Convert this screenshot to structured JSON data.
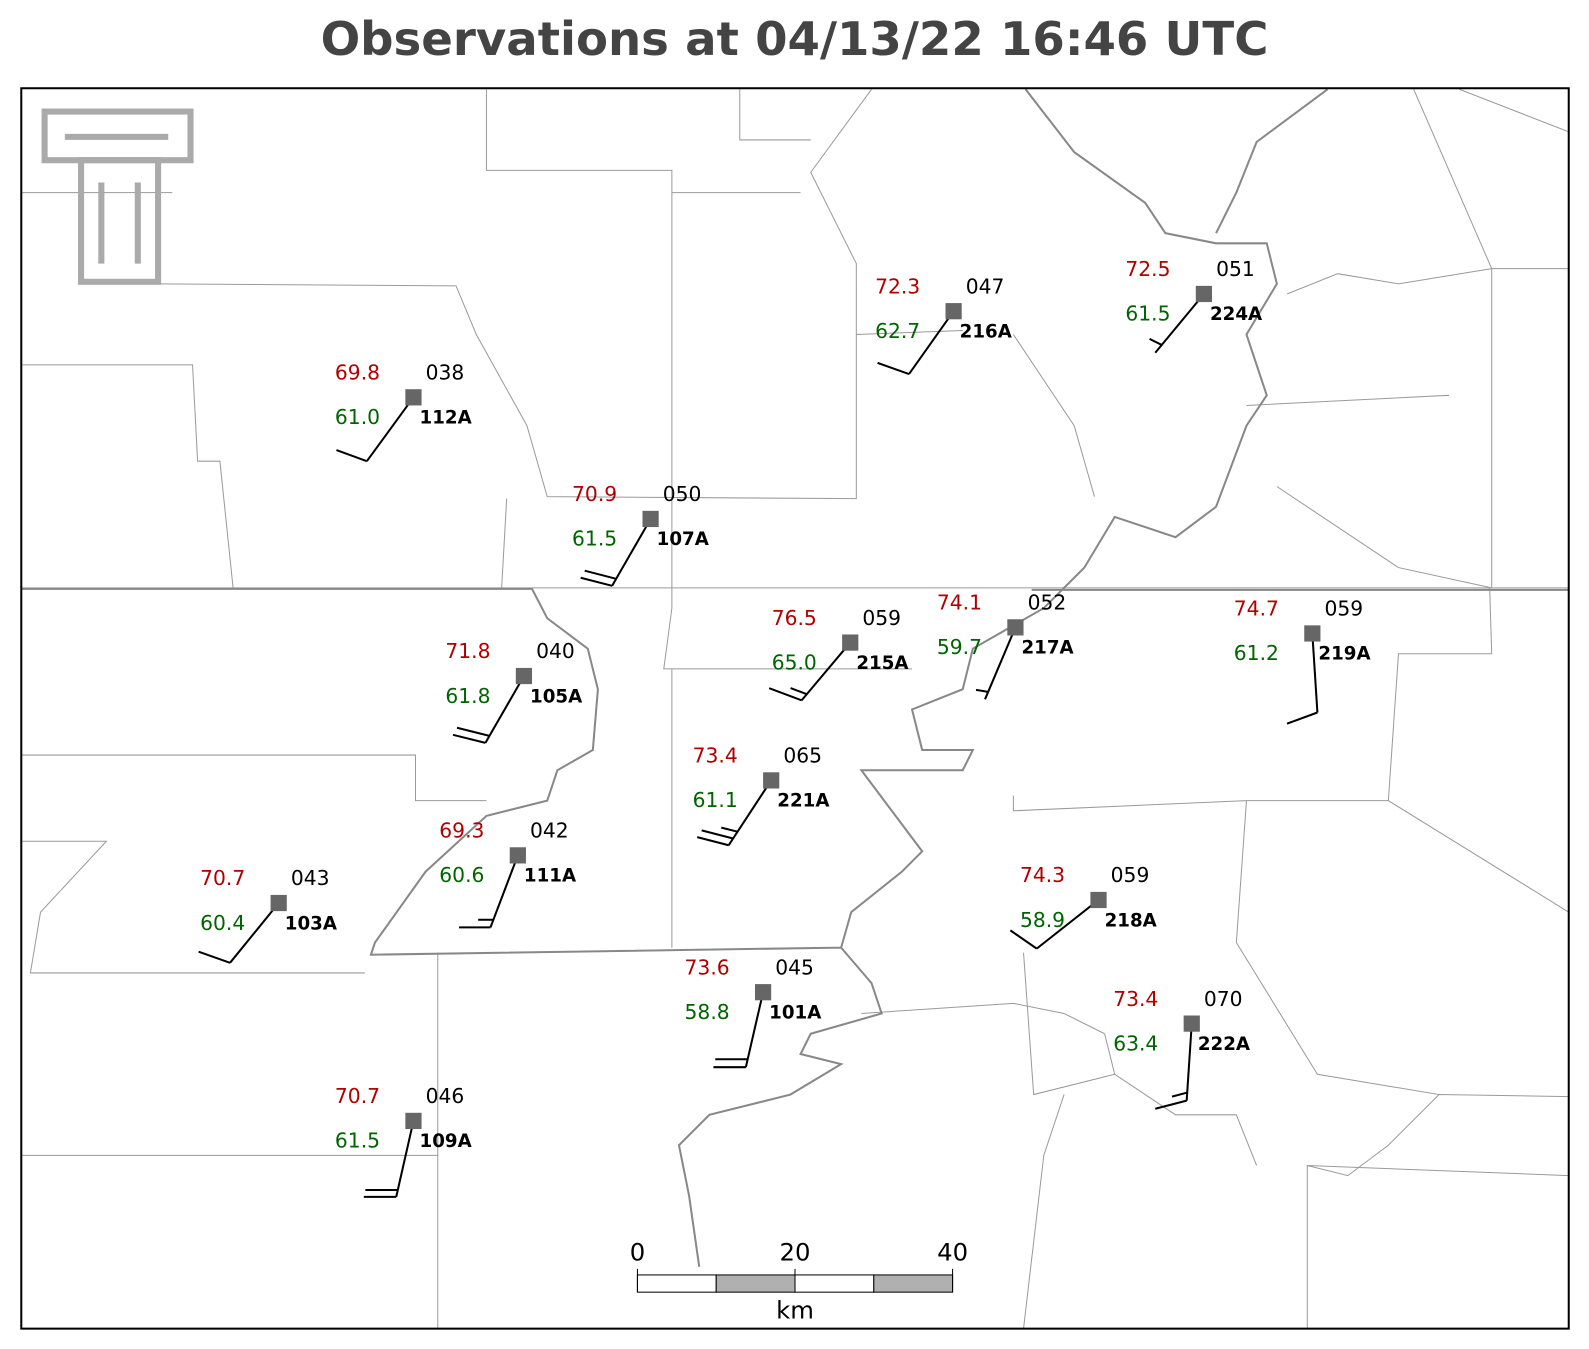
{
  "title": "Observations at 04/13/22 16:46 UTC",
  "stations": [
    {
      "id": "112A",
      "temp": "69.8",
      "dewpoint": "61.0",
      "pressure": "038"
    },
    {
      "id": "107A",
      "temp": "70.9",
      "dewpoint": "61.5",
      "pressure": "050"
    },
    {
      "id": "216A",
      "temp": "72.3",
      "dewpoint": "62.7",
      "pressure": "047"
    },
    {
      "id": "224A",
      "temp": "72.5",
      "dewpoint": "61.5",
      "pressure": "051"
    },
    {
      "id": "105A",
      "temp": "71.8",
      "dewpoint": "61.8",
      "pressure": "040"
    },
    {
      "id": "215A",
      "temp": "76.5",
      "dewpoint": "65.0",
      "pressure": "059"
    },
    {
      "id": "217A",
      "temp": "74.1",
      "dewpoint": "59.7",
      "pressure": "052"
    },
    {
      "id": "219A",
      "temp": "74.7",
      "dewpoint": "61.2",
      "pressure": "059"
    },
    {
      "id": "221A",
      "temp": "73.4",
      "dewpoint": "61.1",
      "pressure": "065"
    },
    {
      "id": "111A",
      "temp": "69.3",
      "dewpoint": "60.6",
      "pressure": "042"
    },
    {
      "id": "103A",
      "temp": "70.7",
      "dewpoint": "60.4",
      "pressure": "043"
    },
    {
      "id": "218A",
      "temp": "74.3",
      "dewpoint": "58.9",
      "pressure": "059"
    },
    {
      "id": "101A",
      "temp": "73.6",
      "dewpoint": "58.8",
      "pressure": "045"
    },
    {
      "id": "222A",
      "temp": "73.4",
      "dewpoint": "63.4",
      "pressure": "070"
    },
    {
      "id": "109A",
      "temp": "70.7",
      "dewpoint": "61.5",
      "pressure": "046"
    }
  ],
  "scale_bar": {
    "ticks": [
      0,
      20,
      40
    ],
    "unit": "km"
  }
}
